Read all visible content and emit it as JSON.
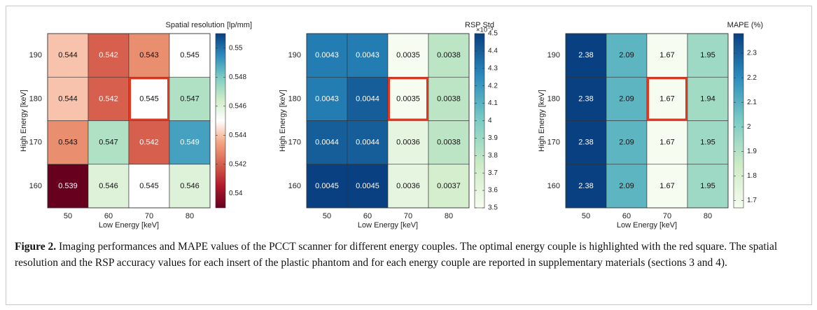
{
  "chart_data": [
    {
      "type": "heatmap",
      "title": "Spatial resolution [lp/mm]",
      "x_categories": [
        "50",
        "60",
        "70",
        "80"
      ],
      "y_categories": [
        "190",
        "180",
        "170",
        "160"
      ],
      "values": [
        [
          0.544,
          0.542,
          0.543,
          0.545
        ],
        [
          0.544,
          0.542,
          0.545,
          0.547
        ],
        [
          0.543,
          0.547,
          0.542,
          0.549
        ],
        [
          0.539,
          0.546,
          0.545,
          0.546
        ]
      ],
      "xlabel": "Low Energy [keV]",
      "ylabel": "High Energy [keV]",
      "clim": [
        0.539,
        0.551
      ],
      "cticks": [
        0.54,
        0.542,
        0.544,
        0.546,
        0.548,
        0.55
      ],
      "colormap": [
        "#67001f",
        "#b2182b",
        "#d6604d",
        "#f4a582",
        "#ffffff",
        "#ccebc5",
        "#7bccc4",
        "#2b8cbe",
        "#084081"
      ],
      "highlight_cell": [
        1,
        2
      ],
      "highlight_color": "#e8341c"
    },
    {
      "type": "heatmap",
      "title": "RSP Std",
      "colorbar_multiplier": "×10⁻³",
      "x_categories": [
        "50",
        "60",
        "70",
        "80"
      ],
      "y_categories": [
        "190",
        "180",
        "170",
        "160"
      ],
      "values": [
        [
          0.0043,
          0.0043,
          0.0035,
          0.0038
        ],
        [
          0.0043,
          0.0044,
          0.0035,
          0.0038
        ],
        [
          0.0044,
          0.0044,
          0.0036,
          0.0038
        ],
        [
          0.0045,
          0.0045,
          0.0036,
          0.0037
        ]
      ],
      "xlabel": "Low Energy [keV]",
      "ylabel": "High Energy [keV]",
      "clim": [
        0.0035,
        0.0045
      ],
      "cticks": [
        {
          "value": 0.0035,
          "label": "3.5"
        },
        {
          "value": 0.0036,
          "label": "3.6"
        },
        {
          "value": 0.0037,
          "label": "3.7"
        },
        {
          "value": 0.0038,
          "label": "3.8"
        },
        {
          "value": 0.0039,
          "label": "3.9"
        },
        {
          "value": 0.004,
          "label": "4"
        },
        {
          "value": 0.0041,
          "label": "4.1"
        },
        {
          "value": 0.0042,
          "label": "4.2"
        },
        {
          "value": 0.0043,
          "label": "4.3"
        },
        {
          "value": 0.0044,
          "label": "4.4"
        },
        {
          "value": 0.0045,
          "label": "4.5"
        }
      ],
      "colormap": [
        "#f7fcf0",
        "#ccebc5",
        "#7bccc4",
        "#2b8cbe",
        "#084081"
      ],
      "highlight_cell": [
        1,
        2
      ],
      "highlight_color": "#e8341c"
    },
    {
      "type": "heatmap",
      "title": "MAPE (%)",
      "x_categories": [
        "50",
        "60",
        "70",
        "80"
      ],
      "y_categories": [
        "190",
        "180",
        "170",
        "160"
      ],
      "values": [
        [
          2.38,
          2.09,
          1.67,
          1.95
        ],
        [
          2.38,
          2.09,
          1.67,
          1.94
        ],
        [
          2.38,
          2.09,
          1.67,
          1.95
        ],
        [
          2.38,
          2.09,
          1.67,
          1.95
        ]
      ],
      "xlabel": "Low Energy [keV]",
      "ylabel": "High Energy [keV]",
      "clim": [
        1.67,
        2.38
      ],
      "cticks": [
        1.7,
        1.8,
        1.9,
        2,
        2.1,
        2.2,
        2.3
      ],
      "colormap": [
        "#f7fcf0",
        "#ccebc5",
        "#7bccc4",
        "#2b8cbe",
        "#084081"
      ],
      "highlight_cell": [
        1,
        2
      ],
      "highlight_color": "#e8341c"
    }
  ],
  "caption_label": "Figure 2.",
  "caption_text": "Imaging performances and MAPE values of the PCCT scanner for different energy couples. The optimal energy couple is highlighted with the red square. The spatial resolution and the RSP accuracy values for each insert of the plastic phantom and for each energy couple are reported in supplementary materials (sections 3 and 4)."
}
